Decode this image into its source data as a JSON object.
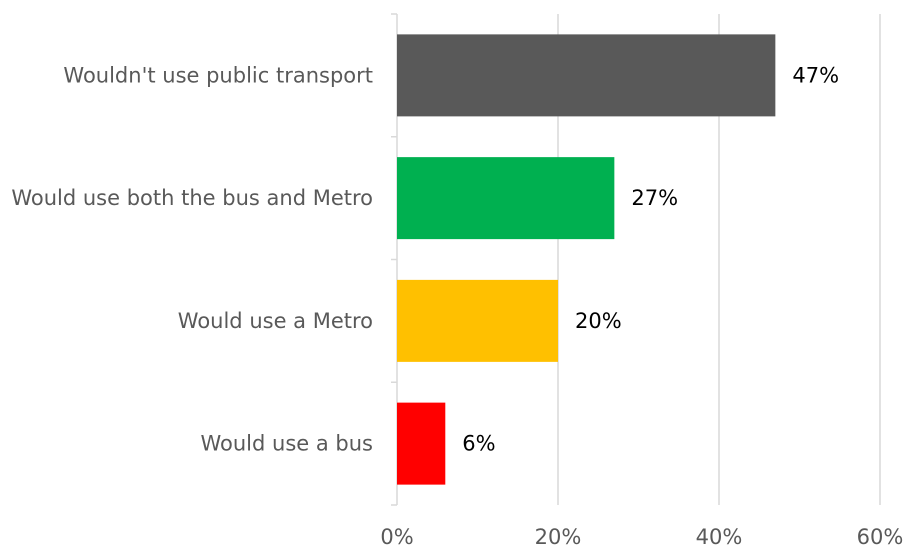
{
  "chart_data": {
    "type": "bar",
    "orientation": "horizontal",
    "categories": [
      "Wouldn't use public transport",
      "Would use both the bus and Metro",
      "Would use a Metro",
      "Would use a bus"
    ],
    "values": [
      47,
      27,
      20,
      6
    ],
    "value_labels": [
      "47%",
      "27%",
      "20%",
      "6%"
    ],
    "colors": [
      "#595959",
      "#00b050",
      "#ffc000",
      "#ff0000"
    ],
    "xlim": [
      0,
      60
    ],
    "x_ticks": [
      0,
      20,
      40,
      60
    ],
    "x_tick_labels": [
      "0%",
      "20%",
      "40%",
      "60%"
    ],
    "grid": "vertical",
    "legend": "none"
  }
}
